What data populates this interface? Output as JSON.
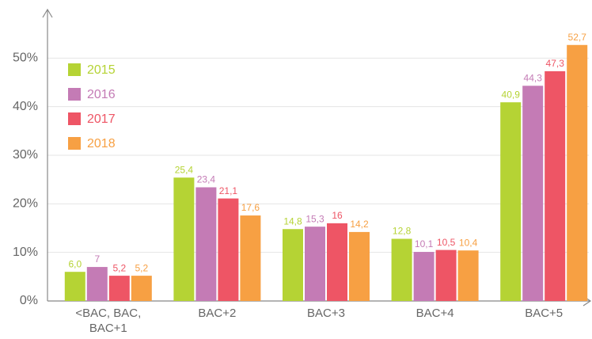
{
  "chart_data": {
    "type": "bar",
    "categories": [
      "<BAC, BAC, BAC+1",
      "BAC+2",
      "BAC+3",
      "BAC+4",
      "BAC+5"
    ],
    "series": [
      {
        "name": "2015",
        "color": "#b5d334",
        "values": [
          6.0,
          25.4,
          14.8,
          12.8,
          40.9
        ],
        "value_labels": [
          "6,0",
          "25,4",
          "14,8",
          "12,8",
          "40,9"
        ]
      },
      {
        "name": "2016",
        "color": "#c47bb5",
        "values": [
          7,
          23.4,
          15.3,
          10.1,
          44.3
        ],
        "value_labels": [
          "7",
          "23,4",
          "15,3",
          "10,1",
          "44,3"
        ]
      },
      {
        "name": "2017",
        "color": "#ee5565",
        "values": [
          5.2,
          21.1,
          16,
          10.5,
          47.3
        ],
        "value_labels": [
          "5,2",
          "21,1",
          "16",
          "10,5",
          "47,3"
        ]
      },
      {
        "name": "2018",
        "color": "#f7a043",
        "values": [
          5.2,
          17.6,
          14.2,
          10.4,
          52.7
        ],
        "value_labels": [
          "5,2",
          "17,6",
          "14,2",
          "10,4",
          "52,7"
        ]
      }
    ],
    "ylim": [
      0,
      60
    ],
    "yticks": [
      {
        "value": 0,
        "label": "0%"
      },
      {
        "value": 10,
        "label": "10%"
      },
      {
        "value": 20,
        "label": "20%"
      },
      {
        "value": 30,
        "label": "30%"
      },
      {
        "value": 40,
        "label": "40%"
      },
      {
        "value": 50,
        "label": "50%"
      }
    ],
    "grid": true,
    "legend": "top-left"
  }
}
